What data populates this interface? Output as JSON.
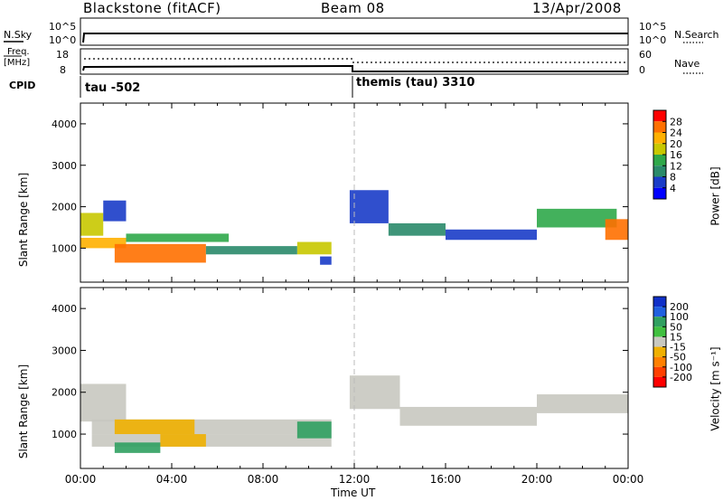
{
  "header": {
    "station": "Blackstone (fitACF)",
    "beam": "Beam 08",
    "date": "13/Apr/2008"
  },
  "panels": {
    "nsky_label": "N.Sky",
    "nsearch_label": "N.Search",
    "freq_label": "Freq.",
    "freq_unit": "[MHz]",
    "nave_label": "Nave",
    "cpid_label": "CPID",
    "cpid_1": "tau  -502",
    "cpid_2": "themis (tau) 3310",
    "log_ticks_left": [
      "10^5",
      "10^0"
    ],
    "log_ticks_right": [
      "10^5",
      "10^0"
    ],
    "freq_ticks": [
      "18",
      "8"
    ],
    "nave_ticks": [
      "60",
      "0"
    ]
  },
  "chart_data": [
    {
      "type": "heatmap",
      "name": "power",
      "ylabel": "Slant Range [km]",
      "ylim": [
        180,
        4500
      ],
      "yticks": [
        1000,
        2000,
        3000,
        4000
      ],
      "x": [
        "00:00",
        "04:00",
        "08:00",
        "12:00",
        "16:00",
        "20:00",
        "00:00"
      ],
      "colorbar": {
        "label": "Power [dB]",
        "ticks": [
          "4",
          "8",
          "12",
          "16",
          "20",
          "24",
          "28"
        ],
        "colors": [
          "#0000ff",
          "#1a3cc8",
          "#2a8a6a",
          "#2fa84a",
          "#c8c800",
          "#ffb000",
          "#ff7000",
          "#ff0000"
        ]
      },
      "cells": [
        [
          0,
          1,
          1300,
          1850,
          18
        ],
        [
          1,
          2,
          1650,
          2150,
          8
        ],
        [
          0,
          2,
          1000,
          1250,
          24
        ],
        [
          1.5,
          5.5,
          650,
          1100,
          28
        ],
        [
          2,
          6.5,
          1150,
          1350,
          16
        ],
        [
          5.5,
          9.5,
          850,
          1050,
          12
        ],
        [
          9.5,
          11,
          850,
          1150,
          20
        ],
        [
          10.5,
          11,
          600,
          800,
          8
        ],
        [
          11.8,
          13.5,
          1600,
          2400,
          8
        ],
        [
          13.5,
          16,
          1300,
          1600,
          12
        ],
        [
          16,
          20,
          1200,
          1450,
          8
        ],
        [
          20,
          23.5,
          1500,
          1950,
          16
        ],
        [
          23,
          24,
          1200,
          1700,
          28
        ]
      ]
    },
    {
      "type": "heatmap",
      "name": "velocity",
      "ylabel": "Slant Range [km]",
      "ylim": [
        180,
        4500
      ],
      "yticks": [
        1000,
        2000,
        3000,
        4000
      ],
      "xlabel": "Time UT",
      "x": [
        "00:00",
        "04:00",
        "08:00",
        "12:00",
        "16:00",
        "20:00",
        "00:00"
      ],
      "colorbar": {
        "label": "Velocity [m s⁻¹]",
        "ticks": [
          "200",
          "100",
          "50",
          "15",
          "-15",
          "-50",
          "-100",
          "-200"
        ],
        "colors": [
          "#1030c8",
          "#2060e0",
          "#30a060",
          "#40c040",
          "#c8c8c0",
          "#f0b000",
          "#ff8000",
          "#ff4000",
          "#ff0000"
        ]
      },
      "cells": [
        [
          0,
          2,
          1300,
          2200,
          -15
        ],
        [
          0.5,
          11,
          1000,
          1350,
          -15
        ],
        [
          0.5,
          11,
          700,
          1000,
          -15
        ],
        [
          1.5,
          5,
          1000,
          1350,
          -50
        ],
        [
          3.5,
          5.5,
          700,
          1000,
          -50
        ],
        [
          1.5,
          3.5,
          550,
          800,
          50
        ],
        [
          9.5,
          11,
          900,
          1300,
          50
        ],
        [
          11.8,
          14,
          1600,
          2400,
          -15
        ],
        [
          14,
          20,
          1200,
          1650,
          -15
        ],
        [
          20,
          24,
          1500,
          1950,
          -15
        ]
      ]
    }
  ]
}
